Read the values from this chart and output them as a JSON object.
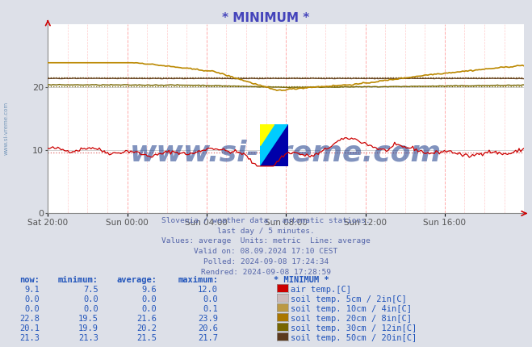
{
  "title": "* MINIMUM *",
  "title_color": "#4444bb",
  "background_color": "#dde0e8",
  "plot_bg_color": "#ffffff",
  "watermark_text": "www.si-vreme.com",
  "watermark_color": "#1a3a8a",
  "subtitle_lines": [
    "Slovenia / weather data - automatic stations.",
    "last day / 5 minutes.",
    "Values: average  Units: metric  Line: average",
    "Valid on: 08.09.2024 17:10 CEST",
    "Polled: 2024-09-08 17:24:34",
    "Rendred: 2024-09-08 17:28:59"
  ],
  "x_ticks_labels": [
    "Sat 20:00",
    "Sun 00:00",
    "Sun 04:00",
    "Sun 08:00",
    "Sun 12:00",
    "Sun 16:00"
  ],
  "x_ticks_norm": [
    0.0,
    0.1667,
    0.3333,
    0.5,
    0.6667,
    0.8333
  ],
  "ylim": [
    0,
    30
  ],
  "yticks": [
    0,
    10,
    20
  ],
  "n_points": 288,
  "air_color": "#cc0000",
  "air_avg_color": "#dd6666",
  "soil20_color": "#bb8800",
  "soil20_avg_color": "#bb8800",
  "soil30_color": "#776600",
  "soil30_avg_color": "#776600",
  "soil50_color": "#664422",
  "soil50_avg_color": "#664422",
  "table_color": "#2255bb",
  "table_header": [
    "now:",
    "minimum:",
    "average:",
    "maximum:",
    "* MINIMUM *"
  ],
  "series": [
    {
      "key": "air_temp",
      "label": "air temp.[C]",
      "swatch": "#cc0000",
      "now": 9.1,
      "min": 7.5,
      "avg": 9.6,
      "max": 12.0
    },
    {
      "key": "soil_5cm",
      "label": "soil temp. 5cm / 2in[C]",
      "swatch": "#ccbbbb",
      "now": 0.0,
      "min": 0.0,
      "avg": 0.0,
      "max": 0.0
    },
    {
      "key": "soil_10cm",
      "label": "soil temp. 10cm / 4in[C]",
      "swatch": "#bb9944",
      "now": 0.0,
      "min": 0.0,
      "avg": 0.0,
      "max": 0.1
    },
    {
      "key": "soil_20cm",
      "label": "soil temp. 20cm / 8in[C]",
      "swatch": "#aa7700",
      "now": 22.8,
      "min": 19.5,
      "avg": 21.6,
      "max": 23.9
    },
    {
      "key": "soil_30cm",
      "label": "soil temp. 30cm / 12in[C]",
      "swatch": "#776600",
      "now": 20.1,
      "min": 19.9,
      "avg": 20.2,
      "max": 20.6
    },
    {
      "key": "soil_50cm",
      "label": "soil temp. 50cm / 20in[C]",
      "swatch": "#5c3a1e",
      "now": 21.3,
      "min": 21.3,
      "avg": 21.5,
      "max": 21.7
    }
  ]
}
